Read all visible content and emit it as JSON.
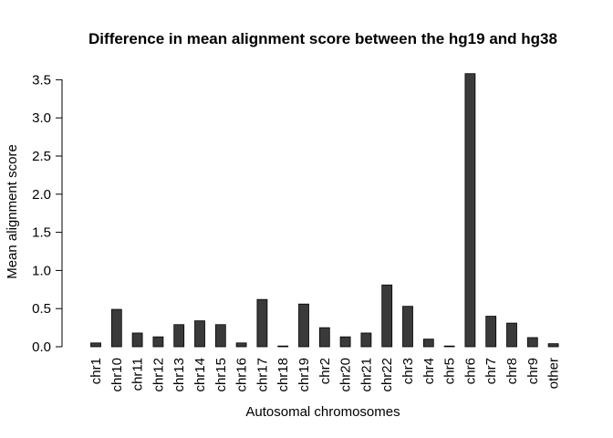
{
  "chart_data": {
    "type": "bar",
    "title": "Difference in mean alignment score between the hg19 and hg38",
    "xlabel": "Autosomal chromosomes",
    "ylabel": "Mean alignment score",
    "categories": [
      "chr1",
      "chr10",
      "chr11",
      "chr12",
      "chr13",
      "chr14",
      "chr15",
      "chr16",
      "chr17",
      "chr18",
      "chr19",
      "chr2",
      "chr20",
      "chr21",
      "chr22",
      "chr3",
      "chr4",
      "chr5",
      "chr6",
      "chr7",
      "chr8",
      "chr9",
      "other"
    ],
    "values": [
      0.05,
      0.49,
      0.18,
      0.13,
      0.29,
      0.34,
      0.29,
      0.05,
      0.62,
      0.01,
      0.56,
      0.25,
      0.13,
      0.18,
      0.81,
      0.53,
      0.1,
      0.01,
      3.58,
      0.4,
      0.31,
      0.12,
      0.04
    ],
    "yticks": [
      "0.0",
      "0.5",
      "1.0",
      "1.5",
      "2.0",
      "2.5",
      "3.0",
      "3.5"
    ],
    "ylim": [
      0,
      3.6
    ],
    "grid": false,
    "legend": "none",
    "bar_color": "#3a3a3a"
  }
}
